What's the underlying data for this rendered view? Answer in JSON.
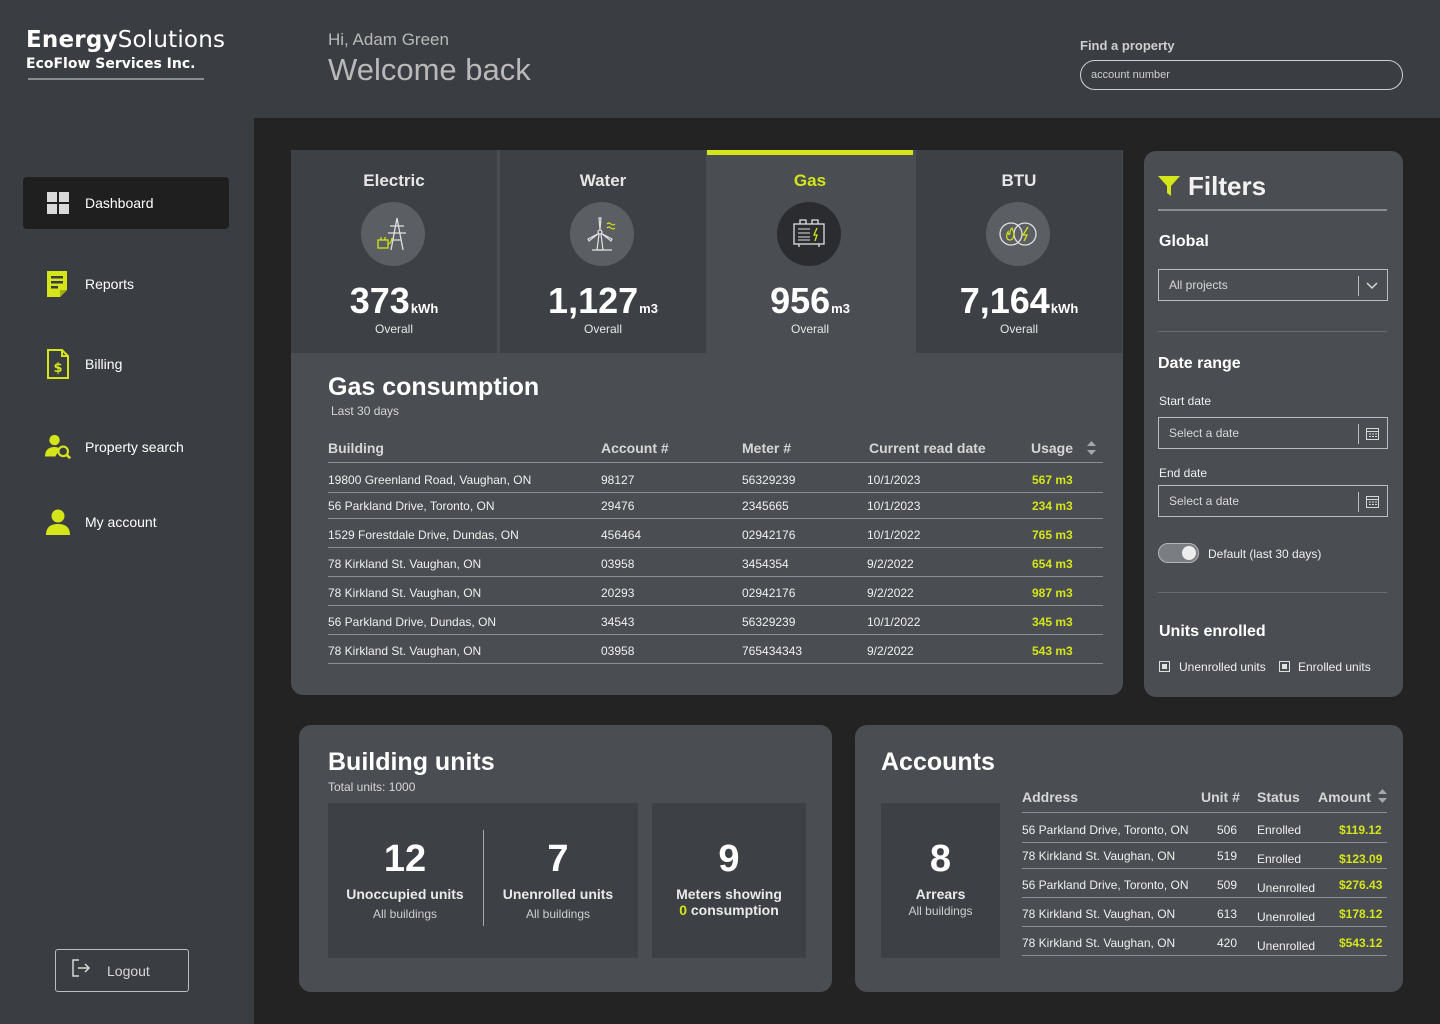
{
  "brand": {
    "name_bold": "Energy",
    "name_light": "Solutions",
    "company": "EcoFlow Services Inc."
  },
  "nav": {
    "items": [
      {
        "label": "Dashboard",
        "icon": "grid-icon"
      },
      {
        "label": "Reports",
        "icon": "report-icon"
      },
      {
        "label": "Billing",
        "icon": "billing-icon"
      },
      {
        "label": "Property search",
        "icon": "person-search-icon"
      },
      {
        "label": "My account",
        "icon": "person-icon"
      }
    ],
    "logout": "Logout"
  },
  "header": {
    "greeting": "Hi, Adam Green",
    "welcome": "Welcome back",
    "find_label": "Find a property",
    "find_placeholder": "account number"
  },
  "utilities": [
    {
      "name": "Electric",
      "value": "373",
      "unit": "kWh",
      "sub": "Overall",
      "icon": "electric-tower-icon"
    },
    {
      "name": "Water",
      "value": "1,127",
      "unit": "m3",
      "sub": "Overall",
      "icon": "wind-turbine-icon"
    },
    {
      "name": "Gas",
      "value": "956",
      "unit": "m3",
      "sub": "Overall",
      "icon": "gas-meter-icon"
    },
    {
      "name": "BTU",
      "value": "7,164",
      "unit": "kWh",
      "sub": "Overall",
      "icon": "flame-bolt-icon"
    }
  ],
  "consumption": {
    "title": "Gas consumption",
    "subtitle": "Last 30 days",
    "headers": {
      "building": "Building",
      "account": "Account #",
      "meter": "Meter #",
      "read_date": "Current read date",
      "usage": "Usage"
    },
    "rows": [
      {
        "building": "19800 Greenland Road, Vaughan, ON",
        "account": "98127",
        "meter": "56329239",
        "date": "10/1/2023",
        "usage": "567 m3"
      },
      {
        "building": "56 Parkland Drive, Toronto, ON",
        "account": "29476",
        "meter": "2345665",
        "date": "10/1/2023",
        "usage": "234 m3"
      },
      {
        "building": "1529 Forestdale Drive, Dundas, ON",
        "account": "456464",
        "meter": "02942176",
        "date": "10/1/2022",
        "usage": "765 m3"
      },
      {
        "building": "78 Kirkland St. Vaughan, ON",
        "account": "03958",
        "meter": "3454354",
        "date": "9/2/2022",
        "usage": "654 m3"
      },
      {
        "building": "78 Kirkland St. Vaughan, ON",
        "account": "20293",
        "meter": "02942176",
        "date": "9/2/2022",
        "usage": "987 m3"
      },
      {
        "building": "56 Parkland Drive, Dundas, ON",
        "account": "34543",
        "meter": "56329239",
        "date": "10/1/2022",
        "usage": "345 m3"
      },
      {
        "building": "78 Kirkland St. Vaughan, ON",
        "account": "03958",
        "meter": "765434343",
        "date": "9/2/2022",
        "usage": "543 m3"
      }
    ]
  },
  "filters": {
    "title": "Filters",
    "global_label": "Global",
    "global_value": "All projects",
    "date_range_label": "Date range",
    "start_label": "Start date",
    "start_placeholder": "Select a date",
    "end_label": "End date",
    "end_placeholder": "Select a date",
    "default_label": "Default (last 30 days)",
    "default_on": true,
    "units_label": "Units enrolled",
    "unenrolled": "Unenrolled units",
    "enrolled": "Enrolled units"
  },
  "building_units": {
    "title": "Building units",
    "subtitle": "Total units: 1000",
    "stats": [
      {
        "num": "12",
        "label": "Unoccupied units",
        "sub": "All buildings"
      },
      {
        "num": "7",
        "label": "Unenrolled units",
        "sub": "All buildings"
      },
      {
        "num": "9",
        "label": "Meters showing",
        "highlight": "0",
        "label2": "consumption"
      }
    ]
  },
  "accounts": {
    "title": "Accounts",
    "arrears_num": "8",
    "arrears_label": "Arrears",
    "arrears_sub": "All buildings",
    "headers": {
      "address": "Address",
      "unit": "Unit #",
      "status": "Status",
      "amount": "Amount"
    },
    "rows": [
      {
        "address": "56 Parkland Drive, Toronto, ON",
        "unit": "506",
        "status": "Enrolled",
        "amount": "$119.12"
      },
      {
        "address": "78 Kirkland St. Vaughan, ON",
        "unit": "519",
        "status": "Enrolled",
        "amount": "$123.09"
      },
      {
        "address": "56 Parkland Drive, Toronto, ON",
        "unit": "509",
        "status": "Unenrolled",
        "amount": "$276.43"
      },
      {
        "address": "78 Kirkland St. Vaughan, ON",
        "unit": "613",
        "status": "Unenrolled",
        "amount": "$178.12"
      },
      {
        "address": "78 Kirkland St. Vaughan, ON",
        "unit": "420",
        "status": "Unenrolled",
        "amount": "$543.12"
      }
    ]
  },
  "colors": {
    "accent": "#d4e619",
    "sidebar": "#3a3d41",
    "panel": "#4a4d51",
    "background": "#232323"
  }
}
